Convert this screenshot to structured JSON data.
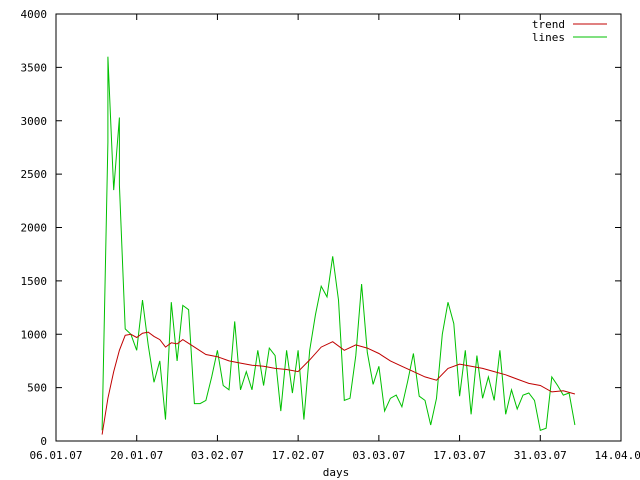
{
  "chart_data": {
    "type": "line",
    "xlabel": "days",
    "ylabel": "",
    "ylim": [
      0,
      4000
    ],
    "xlim": [
      "2007-01-06",
      "2007-04-14"
    ],
    "grid": false,
    "legend_position": "top-right",
    "x_tick_labels": [
      "06.01.07",
      "20.01.07",
      "03.02.07",
      "17.02.07",
      "03.03.07",
      "17.03.07",
      "31.03.07",
      "14.04.07"
    ],
    "y_tick_labels": [
      "0",
      "500",
      "1000",
      "1500",
      "2000",
      "2500",
      "3000",
      "3500",
      "4000"
    ],
    "y_ticks": [
      0,
      500,
      1000,
      1500,
      2000,
      2500,
      3000,
      3500,
      4000
    ],
    "series": [
      {
        "name": "lines",
        "color": "#00c000",
        "x": [
          "2007-01-14",
          "2007-01-15",
          "2007-01-15",
          "2007-01-16",
          "2007-01-17",
          "2007-01-17",
          "2007-01-18",
          "2007-01-19",
          "2007-01-20",
          "2007-01-21",
          "2007-01-22",
          "2007-01-23",
          "2007-01-24",
          "2007-01-25",
          "2007-01-26",
          "2007-01-27",
          "2007-01-28",
          "2007-01-29",
          "2007-01-30",
          "2007-01-31",
          "2007-02-01",
          "2007-02-02",
          "2007-02-03",
          "2007-02-04",
          "2007-02-05",
          "2007-02-06",
          "2007-02-07",
          "2007-02-08",
          "2007-02-09",
          "2007-02-10",
          "2007-02-11",
          "2007-02-12",
          "2007-02-13",
          "2007-02-14",
          "2007-02-15",
          "2007-02-16",
          "2007-02-17",
          "2007-02-18",
          "2007-02-19",
          "2007-02-20",
          "2007-02-21",
          "2007-02-22",
          "2007-02-23",
          "2007-02-24",
          "2007-02-25",
          "2007-02-26",
          "2007-02-27",
          "2007-02-28",
          "2007-03-01",
          "2007-03-02",
          "2007-03-03",
          "2007-03-04",
          "2007-03-05",
          "2007-03-06",
          "2007-03-07",
          "2007-03-08",
          "2007-03-09",
          "2007-03-10",
          "2007-03-11",
          "2007-03-12",
          "2007-03-13",
          "2007-03-14",
          "2007-03-15",
          "2007-03-16",
          "2007-03-17",
          "2007-03-18",
          "2007-03-19",
          "2007-03-20",
          "2007-03-21",
          "2007-03-22",
          "2007-03-23",
          "2007-03-24",
          "2007-03-25",
          "2007-03-26",
          "2007-03-27",
          "2007-03-28",
          "2007-03-29",
          "2007-03-30",
          "2007-03-31",
          "2007-04-01",
          "2007-04-02",
          "2007-04-03",
          "2007-04-04",
          "2007-04-05",
          "2007-04-06"
        ],
        "y": [
          100,
          2800,
          3600,
          2350,
          3030,
          2400,
          1050,
          1000,
          850,
          1320,
          900,
          550,
          750,
          200,
          1300,
          750,
          1270,
          1230,
          350,
          350,
          380,
          600,
          850,
          520,
          480,
          1120,
          480,
          650,
          480,
          850,
          520,
          870,
          800,
          280,
          850,
          450,
          850,
          200,
          850,
          1180,
          1450,
          1350,
          1730,
          1320,
          380,
          400,
          800,
          1470,
          830,
          530,
          700,
          280,
          400,
          430,
          320,
          560,
          820,
          420,
          380,
          150,
          400,
          1000,
          1300,
          1100,
          420,
          850,
          250,
          800,
          400,
          600,
          380,
          850,
          250,
          480,
          300,
          430,
          450,
          380,
          100,
          120,
          600,
          520,
          430,
          450,
          150
        ]
      },
      {
        "name": "trend",
        "color": "#c00000",
        "x": [
          "2007-01-14",
          "2007-01-15",
          "2007-01-16",
          "2007-01-17",
          "2007-01-18",
          "2007-01-19",
          "2007-01-20",
          "2007-01-21",
          "2007-01-22",
          "2007-01-23",
          "2007-01-24",
          "2007-01-25",
          "2007-01-26",
          "2007-01-27",
          "2007-01-28",
          "2007-01-30",
          "2007-02-01",
          "2007-02-03",
          "2007-02-05",
          "2007-02-07",
          "2007-02-09",
          "2007-02-11",
          "2007-02-13",
          "2007-02-15",
          "2007-02-17",
          "2007-02-19",
          "2007-02-21",
          "2007-02-23",
          "2007-02-25",
          "2007-02-27",
          "2007-03-01",
          "2007-03-03",
          "2007-03-05",
          "2007-03-07",
          "2007-03-09",
          "2007-03-11",
          "2007-03-13",
          "2007-03-15",
          "2007-03-17",
          "2007-03-19",
          "2007-03-21",
          "2007-03-23",
          "2007-03-25",
          "2007-03-27",
          "2007-03-29",
          "2007-03-31",
          "2007-04-02",
          "2007-04-04",
          "2007-04-06"
        ],
        "y": [
          60,
          400,
          650,
          850,
          990,
          1000,
          970,
          1010,
          1020,
          980,
          950,
          880,
          920,
          910,
          950,
          880,
          810,
          790,
          750,
          730,
          710,
          700,
          680,
          670,
          650,
          760,
          880,
          930,
          850,
          900,
          870,
          820,
          750,
          700,
          650,
          600,
          570,
          680,
          720,
          700,
          680,
          650,
          620,
          580,
          540,
          520,
          460,
          470,
          440
        ]
      }
    ]
  }
}
